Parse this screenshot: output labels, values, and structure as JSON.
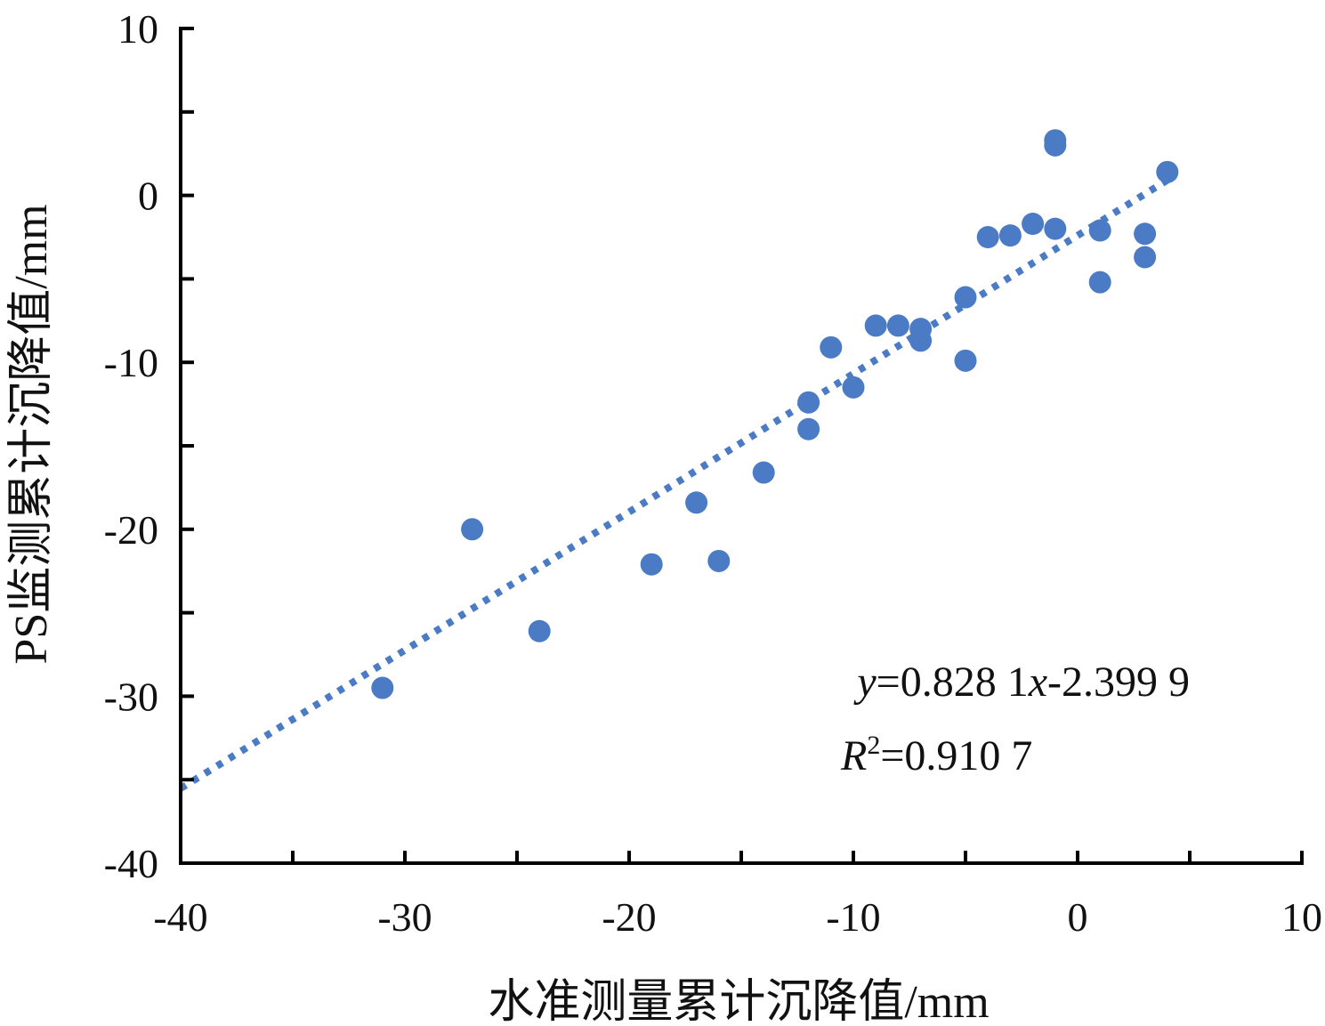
{
  "chart_data": {
    "type": "scatter",
    "xlabel": "水准测量累计沉降值/mm",
    "ylabel": "PS监测累计沉降值/mm",
    "xlim": [
      -40,
      10
    ],
    "ylim": [
      -40,
      10
    ],
    "x_ticks": [
      -40,
      -30,
      -20,
      -10,
      0,
      10
    ],
    "y_ticks": [
      10,
      0,
      -10,
      -20,
      -30,
      -40
    ],
    "x_minor_ticks": [
      -35,
      -25,
      -15,
      -5,
      5
    ],
    "y_minor_ticks": [
      5,
      -5,
      -15,
      -25,
      -35
    ],
    "grid": false,
    "colors": {
      "points": "#4a7bc4",
      "trendline": "#4a7bc4",
      "axis": "#000000"
    },
    "series": [
      {
        "points": [
          {
            "x": -31,
            "y": -29.5
          },
          {
            "x": -27,
            "y": -20.0
          },
          {
            "x": -24,
            "y": -26.1
          },
          {
            "x": -19,
            "y": -22.1
          },
          {
            "x": -17,
            "y": -18.4
          },
          {
            "x": -16,
            "y": -21.9
          },
          {
            "x": -14,
            "y": -16.6
          },
          {
            "x": -12,
            "y": -12.4
          },
          {
            "x": -12,
            "y": -14.0
          },
          {
            "x": -11,
            "y": -9.1
          },
          {
            "x": -10,
            "y": -11.5
          },
          {
            "x": -9,
            "y": -7.8
          },
          {
            "x": -8,
            "y": -7.8
          },
          {
            "x": -7,
            "y": -8.0
          },
          {
            "x": -7,
            "y": -8.7
          },
          {
            "x": -5,
            "y": -6.1
          },
          {
            "x": -5,
            "y": -9.9
          },
          {
            "x": -4,
            "y": -2.5
          },
          {
            "x": -3,
            "y": -2.4
          },
          {
            "x": -2,
            "y": -1.7
          },
          {
            "x": -1,
            "y": 3.3
          },
          {
            "x": -1,
            "y": 3.0
          },
          {
            "x": -1,
            "y": -2.0
          },
          {
            "x": 1,
            "y": -2.1
          },
          {
            "x": 1,
            "y": -5.2
          },
          {
            "x": 3,
            "y": -2.3
          },
          {
            "x": 3,
            "y": -3.7
          },
          {
            "x": 4,
            "y": 1.4
          }
        ]
      }
    ],
    "trendline": {
      "slope": 0.8281,
      "intercept": -2.3999,
      "x_range": [
        -40,
        4
      ],
      "style": "dotted"
    },
    "annotations": {
      "equation": {
        "y_var": "y",
        "eq_part1": "=0.828 1",
        "x_var": "x",
        "eq_part2": "-2.399 9"
      },
      "r_squared": {
        "r": "R",
        "sup": "2",
        "value": "=0.910 7"
      }
    }
  }
}
